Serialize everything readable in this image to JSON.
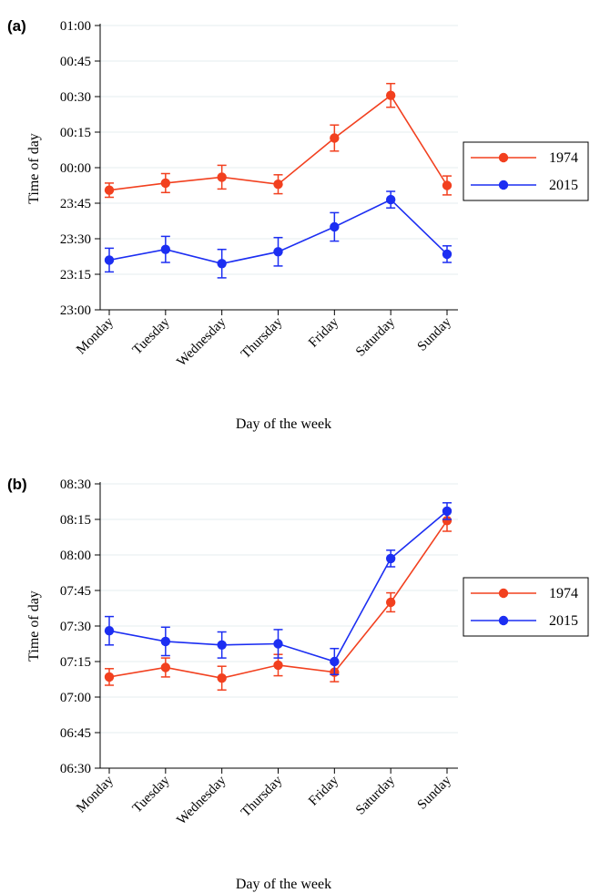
{
  "chart_data": [
    {
      "type": "line",
      "panel_label": "(a)",
      "categories": [
        "Monday",
        "Tuesday",
        "Wednesday",
        "Thursday",
        "Friday",
        "Saturday",
        "Sunday"
      ],
      "xlabel": "Day of the week",
      "ylabel": "Time of day",
      "yticks": [
        "23:00",
        "23:15",
        "23:30",
        "23:45",
        "00:00",
        "00:15",
        "00:30",
        "00:45",
        "01:00"
      ],
      "ylim_minutes": [
        0,
        120
      ],
      "y_origin_note": "minutes after 23:00",
      "grid": "horizontal",
      "legend_position": "right",
      "series": [
        {
          "name": "1974",
          "color": "#f2401f",
          "values": [
            50.5,
            53.5,
            56.0,
            53.0,
            72.5,
            90.5,
            52.5
          ],
          "err": [
            3.0,
            4.0,
            5.0,
            4.0,
            5.5,
            5.0,
            4.0
          ]
        },
        {
          "name": "2015",
          "color": "#1c2ef2",
          "values": [
            21.0,
            25.5,
            19.5,
            24.5,
            35.0,
            46.5,
            23.5
          ],
          "err": [
            5.0,
            5.5,
            6.0,
            6.0,
            6.0,
            3.5,
            3.5
          ]
        }
      ]
    },
    {
      "type": "line",
      "panel_label": "(b)",
      "categories": [
        "Monday",
        "Tuesday",
        "Wednesday",
        "Thursday",
        "Friday",
        "Saturday",
        "Sunday"
      ],
      "xlabel": "Day of the week",
      "ylabel": "Time of day",
      "yticks": [
        "06:30",
        "06:45",
        "07:00",
        "07:15",
        "07:30",
        "07:45",
        "08:00",
        "08:15",
        "08:30"
      ],
      "ylim_minutes": [
        0,
        120
      ],
      "y_origin_note": "minutes after 06:30",
      "grid": "horizontal",
      "legend_position": "right",
      "series": [
        {
          "name": "1974",
          "color": "#f2401f",
          "values": [
            38.5,
            42.5,
            38.0,
            43.5,
            40.5,
            70.0,
            104.5
          ],
          "err": [
            3.5,
            4.0,
            5.0,
            4.5,
            4.0,
            4.0,
            4.5
          ]
        },
        {
          "name": "2015",
          "color": "#1c2ef2",
          "values": [
            58.0,
            53.5,
            52.0,
            52.5,
            45.0,
            88.5,
            108.5
          ],
          "err": [
            6.0,
            6.0,
            5.5,
            6.0,
            5.5,
            3.5,
            3.5
          ]
        }
      ]
    }
  ]
}
